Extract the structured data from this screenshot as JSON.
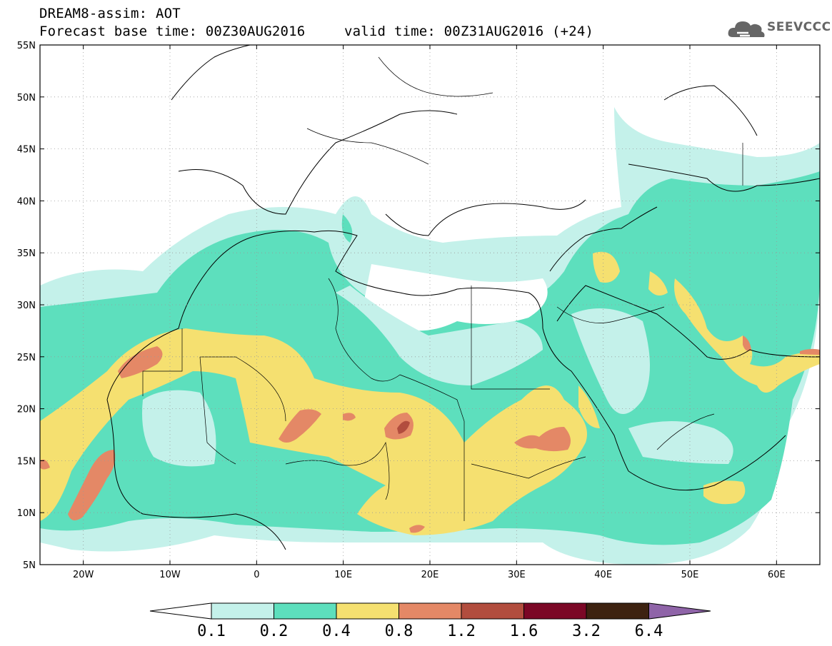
{
  "title": {
    "line1": "DREAM8-assim: AOT",
    "base_time": "Forecast base time: 00Z30AUG2016",
    "valid_time": "valid time: 00Z31AUG2016 (+24)"
  },
  "logo": {
    "text": "SEEVCCC",
    "icon": "cloud-icon"
  },
  "map": {
    "lon_range": [
      -25,
      65
    ],
    "lat_range": [
      5,
      55
    ],
    "lat_labels": [
      "55N",
      "50N",
      "45N",
      "40N",
      "35N",
      "30N",
      "25N",
      "20N",
      "15N",
      "10N",
      "5N"
    ],
    "lon_labels": [
      "20W",
      "10W",
      "0",
      "10E",
      "20E",
      "30E",
      "40E",
      "50E",
      "60E"
    ],
    "gridlines": "dotted"
  },
  "colorbar": {
    "levels": [
      "0.1",
      "0.2",
      "0.4",
      "0.8",
      "1.2",
      "1.6",
      "3.2",
      "6.4"
    ],
    "colors": [
      "#ffffff",
      "#c4f1ea",
      "#5ddfbd",
      "#f5e070",
      "#e48866",
      "#b24d3e",
      "#7b0726",
      "#3d2210",
      "#8f64a8"
    ]
  }
}
